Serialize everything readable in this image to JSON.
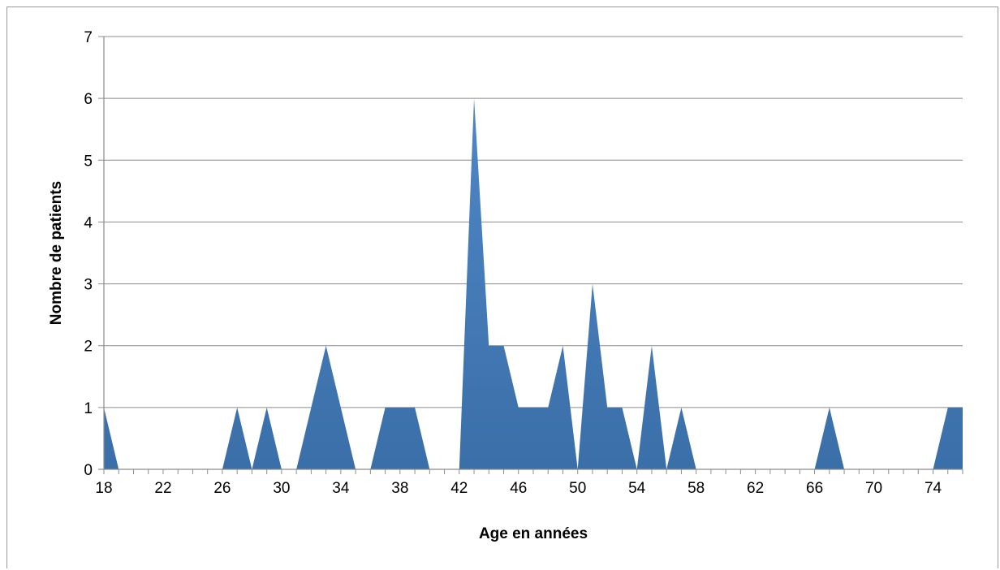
{
  "chart_data": {
    "type": "area",
    "title": "",
    "xlabel": "Age en années",
    "ylabel": "Nombre de patients",
    "x": [
      18,
      19,
      20,
      21,
      22,
      23,
      24,
      25,
      26,
      27,
      28,
      29,
      30,
      31,
      32,
      33,
      34,
      35,
      36,
      37,
      38,
      39,
      40,
      41,
      42,
      43,
      44,
      45,
      46,
      47,
      48,
      49,
      50,
      51,
      52,
      53,
      54,
      55,
      56,
      57,
      58,
      59,
      60,
      61,
      62,
      63,
      64,
      65,
      66,
      67,
      68,
      69,
      70,
      71,
      72,
      73,
      74,
      75,
      76
    ],
    "series": [
      {
        "values": [
          1,
          0,
          0,
          0,
          0,
          0,
          0,
          0,
          0,
          1,
          0,
          1,
          0,
          0,
          1,
          2,
          1,
          0,
          0,
          1,
          1,
          1,
          0,
          0,
          0,
          6,
          2,
          2,
          1,
          1,
          1,
          2,
          0,
          3,
          1,
          1,
          0,
          2,
          0,
          1,
          0,
          0,
          0,
          0,
          0,
          0,
          0,
          0,
          0,
          1,
          0,
          0,
          0,
          0,
          0,
          0,
          0,
          1,
          1
        ]
      }
    ],
    "xticks": [
      "18",
      "22",
      "26",
      "30",
      "34",
      "38",
      "42",
      "46",
      "50",
      "54",
      "58",
      "62",
      "66",
      "70",
      "74"
    ],
    "yticks": [
      "0",
      "1",
      "2",
      "3",
      "4",
      "5",
      "6",
      "7"
    ],
    "xlim": [
      18,
      76
    ],
    "ylim": [
      0,
      7
    ],
    "grid": "horizontal",
    "legend": "none",
    "colors": {
      "fill_top": "#4f86c6",
      "fill_bottom": "#3a6fa8",
      "grid": "#8c8c8c",
      "axis": "#8c8c8c"
    }
  }
}
